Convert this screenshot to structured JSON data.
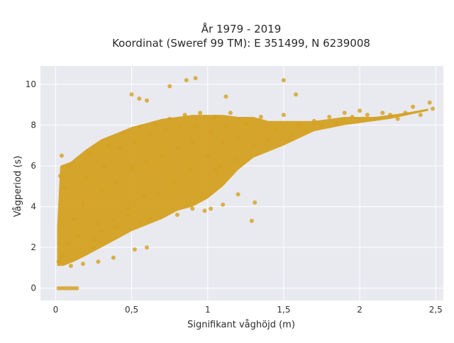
{
  "chart_data": {
    "type": "scatter",
    "title_line1": "År 1979 - 2019",
    "title_line2": "Koordinat (Sweref 99 TM): E 351499, N 6239008",
    "xlabel": "Signifikant våghöjd (m)",
    "ylabel": "Vågperiod (s)",
    "xlim": [
      -0.1,
      2.55
    ],
    "ylim": [
      -0.6,
      10.9
    ],
    "xticks": [
      0,
      0.5,
      1,
      1.5,
      2,
      2.5
    ],
    "xtick_labels": [
      "0",
      "0,5",
      "1",
      "1,5",
      "2",
      "2,5"
    ],
    "yticks": [
      0,
      2,
      4,
      6,
      8,
      10
    ],
    "ytick_labels": [
      "0",
      "2",
      "4",
      "6",
      "8",
      "10"
    ],
    "grid": true,
    "legend": "none",
    "colors": {
      "marker": "#D4A020",
      "plot_background": "#E9E9F0",
      "grid": "#ffffff"
    },
    "series": [
      {
        "points": [
          [
            0.02,
            0
          ],
          [
            0.04,
            0
          ],
          [
            0.06,
            0
          ],
          [
            0.08,
            0
          ],
          [
            0.1,
            0
          ],
          [
            0.12,
            0
          ],
          [
            0.14,
            0
          ],
          [
            0.02,
            1.3
          ],
          [
            0.05,
            1.6
          ],
          [
            0.08,
            2.2
          ],
          [
            0.1,
            1.1
          ],
          [
            0.12,
            3.4
          ],
          [
            0.06,
            4.9
          ],
          [
            0.04,
            6.5
          ],
          [
            0.09,
            6.0
          ],
          [
            0.03,
            5.5
          ],
          [
            0.15,
            2.6
          ],
          [
            0.18,
            4.1
          ],
          [
            0.2,
            5.4
          ],
          [
            0.22,
            6.6
          ],
          [
            0.25,
            2.0
          ],
          [
            0.28,
            3.2
          ],
          [
            0.3,
            4.8
          ],
          [
            0.32,
            6.0
          ],
          [
            0.35,
            7.0
          ],
          [
            0.38,
            3.4
          ],
          [
            0.4,
            5.2
          ],
          [
            0.42,
            6.9
          ],
          [
            0.45,
            7.6
          ],
          [
            0.48,
            3.9
          ],
          [
            0.5,
            5.9
          ],
          [
            0.52,
            7.2
          ],
          [
            0.55,
            7.9
          ],
          [
            0.58,
            4.5
          ],
          [
            0.6,
            6.2
          ],
          [
            0.62,
            7.5
          ],
          [
            0.65,
            8.1
          ],
          [
            0.68,
            4.7
          ],
          [
            0.7,
            6.5
          ],
          [
            0.72,
            7.8
          ],
          [
            0.75,
            8.3
          ],
          [
            0.78,
            5.2
          ],
          [
            0.8,
            6.9
          ],
          [
            0.82,
            7.9
          ],
          [
            0.85,
            8.5
          ],
          [
            0.88,
            5.8
          ],
          [
            0.9,
            7.2
          ],
          [
            0.92,
            8.0
          ],
          [
            0.95,
            8.6
          ],
          [
            0.98,
            3.8
          ],
          [
            1.0,
            6.5
          ],
          [
            1.02,
            7.7
          ],
          [
            1.05,
            8.4
          ],
          [
            1.08,
            6.0
          ],
          [
            1.1,
            7.2
          ],
          [
            1.12,
            7.9
          ],
          [
            1.15,
            8.6
          ],
          [
            1.18,
            6.3
          ],
          [
            1.2,
            7.4
          ],
          [
            1.25,
            8.1
          ],
          [
            1.3,
            7.0
          ],
          [
            1.35,
            8.4
          ],
          [
            1.4,
            7.3
          ],
          [
            1.45,
            7.8
          ],
          [
            1.5,
            8.5
          ],
          [
            1.55,
            7.5
          ],
          [
            1.6,
            8.0
          ],
          [
            1.65,
            7.7
          ],
          [
            1.7,
            8.2
          ],
          [
            1.75,
            8.0
          ],
          [
            1.8,
            8.4
          ],
          [
            1.85,
            8.1
          ],
          [
            1.9,
            8.6
          ],
          [
            1.95,
            8.4
          ],
          [
            2.0,
            8.7
          ],
          [
            2.05,
            8.5
          ],
          [
            2.1,
            8.3
          ],
          [
            2.15,
            8.6
          ],
          [
            2.2,
            8.5
          ],
          [
            2.25,
            8.3
          ],
          [
            2.3,
            8.6
          ],
          [
            2.35,
            8.9
          ],
          [
            2.4,
            8.5
          ],
          [
            2.46,
            9.1
          ],
          [
            2.48,
            8.8
          ],
          [
            0.5,
            9.5
          ],
          [
            0.6,
            9.2
          ],
          [
            0.75,
            9.9
          ],
          [
            0.86,
            10.2
          ],
          [
            0.92,
            10.3
          ],
          [
            1.12,
            9.4
          ],
          [
            1.5,
            10.2
          ],
          [
            1.58,
            9.5
          ],
          [
            0.55,
            9.3
          ],
          [
            0.25,
            2.4
          ],
          [
            0.3,
            2.8
          ],
          [
            0.4,
            3.0
          ],
          [
            0.48,
            3.6
          ],
          [
            0.56,
            3.2
          ],
          [
            0.62,
            3.4
          ],
          [
            0.8,
            3.6
          ],
          [
            0.9,
            3.9
          ],
          [
            1.02,
            3.9
          ],
          [
            1.1,
            4.1
          ],
          [
            1.31,
            4.2
          ],
          [
            1.29,
            3.3
          ],
          [
            1.05,
            5.8
          ],
          [
            1.2,
            4.6
          ],
          [
            0.6,
            2.0
          ],
          [
            0.52,
            1.9
          ],
          [
            0.38,
            1.5
          ],
          [
            0.28,
            1.3
          ],
          [
            0.18,
            1.2
          ]
        ]
      }
    ]
  }
}
